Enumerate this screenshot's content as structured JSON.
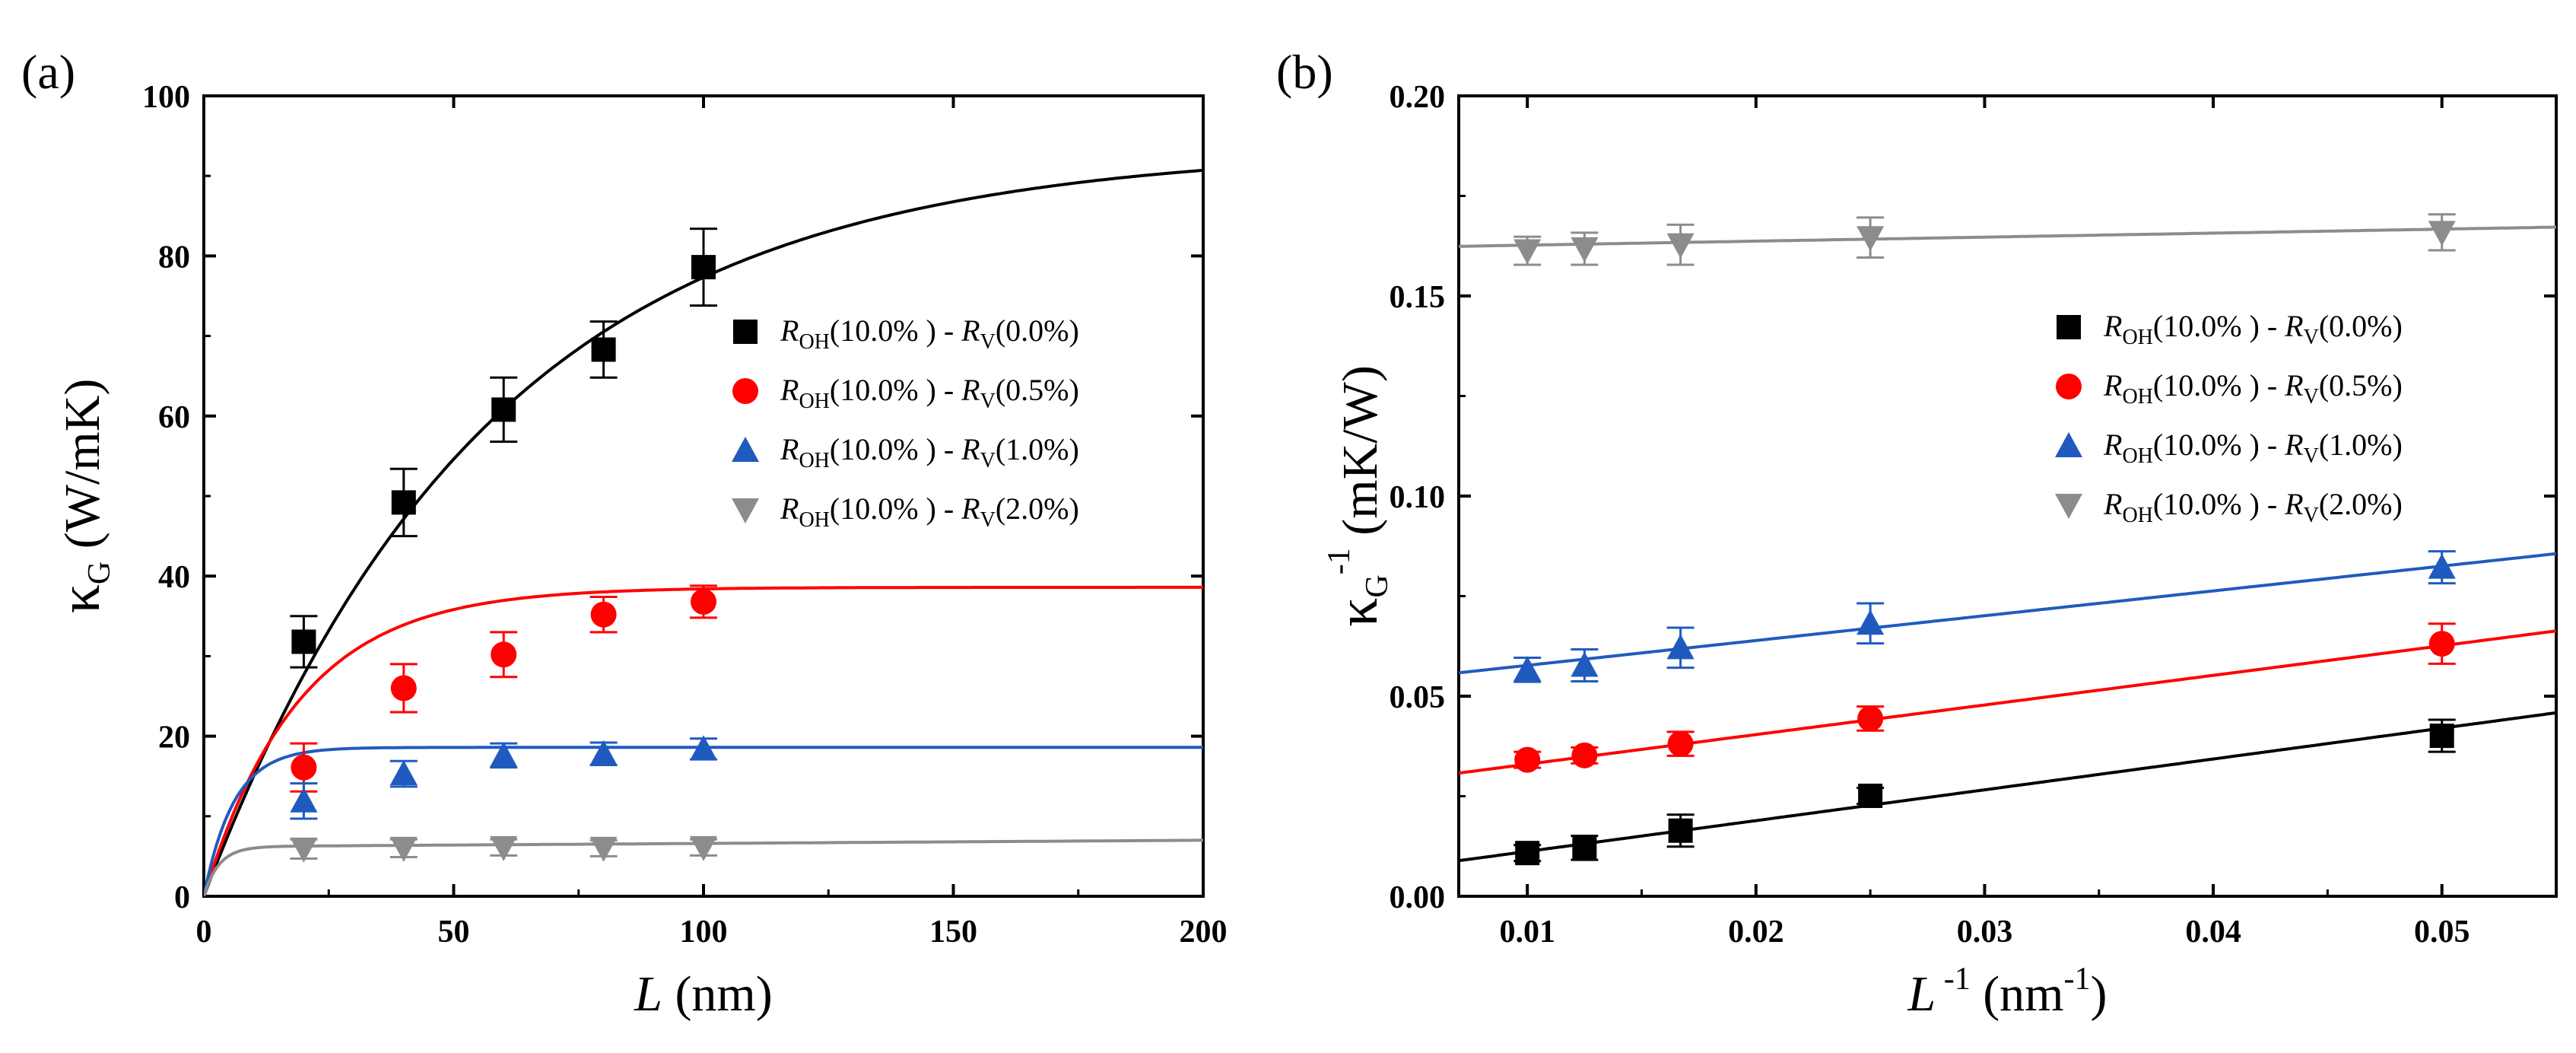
{
  "chart_data": [
    {
      "type": "scatter",
      "panel": "(a)",
      "xlabel": "L (nm)",
      "xlabel_var": "L",
      "xlabel_unit": "(nm)",
      "ylabel": "κG (W/mK)",
      "ylabel_sym": "κ",
      "ylabel_sub": "G",
      "ylabel_unit": "(W/mK)",
      "xlim": [
        0,
        200
      ],
      "ylim": [
        0,
        100
      ],
      "xticks": [
        0,
        50,
        100,
        150,
        200
      ],
      "xtick_labels": [
        "0",
        "50",
        "100",
        "150",
        "200"
      ],
      "yticks": [
        0,
        20,
        40,
        60,
        80,
        100
      ],
      "ytick_labels": [
        "0",
        "20",
        "40",
        "60",
        "80",
        "100"
      ],
      "legend_position": "right",
      "series": [
        {
          "name": "R_OH(10.0%) - R_V(0.0%)",
          "legend": {
            "r1": "R",
            "s1": "OH",
            "t1": "(10.0% ) - ",
            "r2": "R",
            "s2": "V",
            "t2": "(0.0%)"
          },
          "color": "#000000",
          "marker": "square",
          "x": [
            20,
            40,
            60,
            80,
            100
          ],
          "y": [
            31.8,
            49.2,
            60.8,
            68.3,
            78.6
          ],
          "err": [
            3.2,
            4.2,
            4.0,
            3.5,
            4.8
          ],
          "fit": {
            "kinf": 93.5,
            "lambda": 57
          }
        },
        {
          "name": "R_OH(10.0%) - R_V(0.5%)",
          "legend": {
            "r1": "R",
            "s1": "OH",
            "t1": "(10.0% ) - ",
            "r2": "R",
            "s2": "V",
            "t2": "(0.5%)"
          },
          "color": "#ff0000",
          "marker": "circle",
          "x": [
            20,
            40,
            60,
            80,
            100
          ],
          "y": [
            16.1,
            26.0,
            30.2,
            35.2,
            36.8
          ],
          "err": [
            3.0,
            3.0,
            2.8,
            2.2,
            2.0
          ],
          "fit": {
            "kinf": 38.6,
            "lambda": 19
          }
        },
        {
          "name": "R_OH(10.0%) - R_V(1.0%)",
          "legend": {
            "r1": "R",
            "s1": "OH",
            "t1": "(10.0% ) - ",
            "r2": "R",
            "s2": "V",
            "t2": "(1.0%)"
          },
          "color": "#1f5bbf",
          "marker": "triangle-up",
          "x": [
            20,
            40,
            60,
            80,
            100
          ],
          "y": [
            11.9,
            15.3,
            17.6,
            17.8,
            18.4
          ],
          "err": [
            2.2,
            1.6,
            1.5,
            1.4,
            1.3
          ],
          "fit": {
            "kinf": 18.6,
            "lambda": 6
          }
        },
        {
          "name": "R_OH(10.0%) - R_V(2.0%)",
          "legend": {
            "r1": "R",
            "s1": "OH",
            "t1": "(10.0% ) - ",
            "r2": "R",
            "s2": "V",
            "t2": "(2.0%)"
          },
          "color": "#8c8c8c",
          "marker": "triangle-down",
          "x": [
            20,
            40,
            60,
            80,
            100
          ],
          "y": [
            5.9,
            6.0,
            6.1,
            6.0,
            6.1
          ],
          "err": [
            1.2,
            1.1,
            1.0,
            1.0,
            1.0
          ],
          "fit": {
            "kinf": 6.2,
            "lambda": 3,
            "slope": 0.004
          }
        }
      ]
    },
    {
      "type": "scatter",
      "panel": "(b)",
      "xlabel": "L-1 (nm-1)",
      "xlabel_var": "L",
      "xlabel_sup": "-1",
      "xlabel_unit": "(nm",
      "xlabel_unit_sup": "-1",
      "xlabel_close": ")",
      "ylabel": "κG-1 (mK/W)",
      "ylabel_sym": "κ",
      "ylabel_sub": "G",
      "ylabel_sup": "-1",
      "ylabel_unit": "(mK/W)",
      "xlim": [
        0.007,
        0.055
      ],
      "ylim": [
        0.0,
        0.2
      ],
      "xticks": [
        0.01,
        0.02,
        0.03,
        0.04,
        0.05
      ],
      "xtick_labels": [
        "0.01",
        "0.02",
        "0.03",
        "0.04",
        "0.05"
      ],
      "yticks": [
        0.0,
        0.05,
        0.1,
        0.15,
        0.2
      ],
      "ytick_labels": [
        "0.00",
        "0.05",
        "0.10",
        "0.15",
        "0.20"
      ],
      "legend_position": "right",
      "series": [
        {
          "name": "R_OH(10.0%) - R_V(0.0%)",
          "legend": {
            "r1": "R",
            "s1": "OH",
            "t1": "(10.0% ) - ",
            "r2": "R",
            "s2": "V",
            "t2": "(0.0%)"
          },
          "color": "#000000",
          "marker": "square",
          "x": [
            0.01,
            0.0125,
            0.0167,
            0.025,
            0.05
          ],
          "y": [
            0.0108,
            0.0121,
            0.0164,
            0.0251,
            0.0401
          ],
          "err": [
            0.002,
            0.003,
            0.004,
            0.002,
            0.004
          ],
          "fit": {
            "intercept": 0.0035,
            "slope": 0.77
          }
        },
        {
          "name": "R_OH(10.0%) - R_V(0.5%)",
          "legend": {
            "r1": "R",
            "s1": "OH",
            "t1": "(10.0% ) - ",
            "r2": "R",
            "s2": "V",
            "t2": "(0.5%)"
          },
          "color": "#ff0000",
          "marker": "circle",
          "x": [
            0.01,
            0.0125,
            0.0167,
            0.025,
            0.05
          ],
          "y": [
            0.0341,
            0.0352,
            0.0381,
            0.0444,
            0.0631
          ],
          "err": [
            0.002,
            0.002,
            0.003,
            0.003,
            0.005
          ],
          "fit": {
            "intercept": 0.0256,
            "slope": 0.74
          }
        },
        {
          "name": "R_OH(10.0%) - R_V(1.0%)",
          "legend": {
            "r1": "R",
            "s1": "OH",
            "t1": "(10.0% ) - ",
            "r2": "R",
            "s2": "V",
            "t2": "(1.0%)"
          },
          "color": "#1f5bbf",
          "marker": "triangle-up",
          "x": [
            0.01,
            0.0125,
            0.0167,
            0.025,
            0.05
          ],
          "y": [
            0.0566,
            0.0577,
            0.0621,
            0.0682,
            0.0822
          ],
          "err": [
            0.003,
            0.004,
            0.005,
            0.005,
            0.004
          ],
          "fit": {
            "intercept": 0.0515,
            "slope": 0.62
          }
        },
        {
          "name": "R_OH(10.0%) - R_V(2.0%)",
          "legend": {
            "r1": "R",
            "s1": "OH",
            "t1": "(10.0% ) - ",
            "r2": "R",
            "s2": "V",
            "t2": "(2.0%)"
          },
          "color": "#8c8c8c",
          "marker": "triangle-down",
          "x": [
            0.01,
            0.0125,
            0.0167,
            0.025,
            0.05
          ],
          "y": [
            0.1613,
            0.1618,
            0.1628,
            0.1646,
            0.1659
          ],
          "err": [
            0.0035,
            0.004,
            0.005,
            0.005,
            0.0045
          ],
          "fit": {
            "intercept": 0.1617,
            "slope": 0.1
          }
        }
      ]
    }
  ]
}
